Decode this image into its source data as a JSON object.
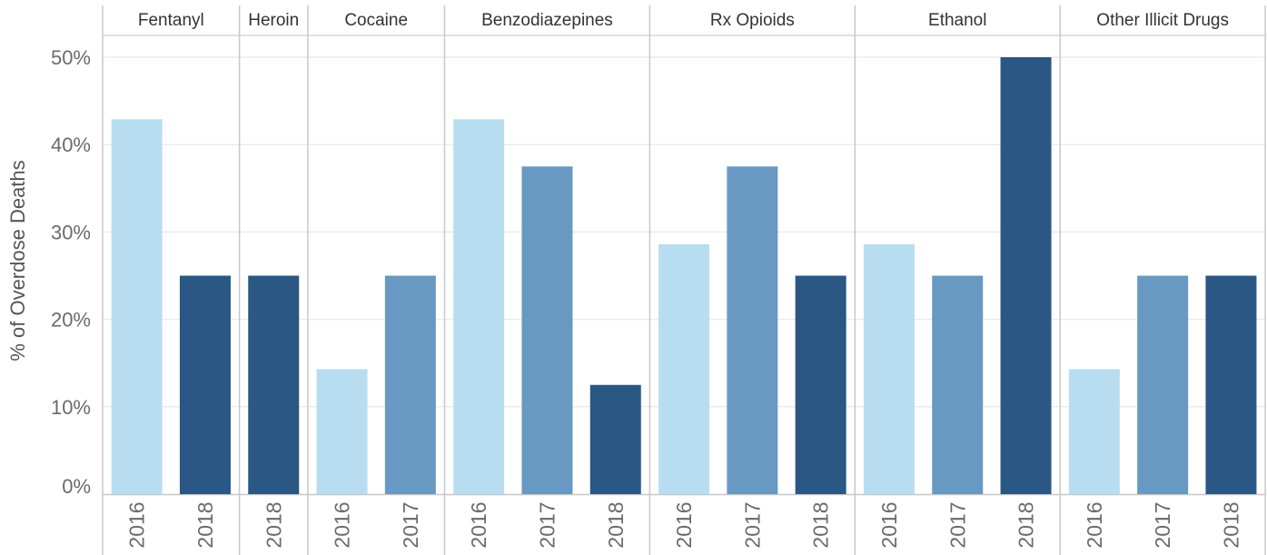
{
  "chart_data": {
    "type": "bar",
    "ylabel": "% of Overdose Deaths",
    "ylim": [
      0,
      50
    ],
    "yticks": [
      "0%",
      "10%",
      "20%",
      "30%",
      "40%",
      "50%"
    ],
    "ytick_values": [
      0,
      10,
      20,
      30,
      40,
      50
    ],
    "grid": true,
    "year_colors": {
      "2016": "#b9ddf0",
      "2017": "#6899c2",
      "2018": "#2a5783"
    },
    "panels": [
      {
        "name": "Fentanyl",
        "bars": [
          {
            "year": "2016",
            "value": 42.9
          },
          {
            "year": "2018",
            "value": 25.0
          }
        ]
      },
      {
        "name": "Heroin",
        "bars": [
          {
            "year": "2018",
            "value": 25.0
          }
        ]
      },
      {
        "name": "Cocaine",
        "bars": [
          {
            "year": "2016",
            "value": 14.3
          },
          {
            "year": "2017",
            "value": 25.0
          }
        ]
      },
      {
        "name": "Benzodiazepines",
        "bars": [
          {
            "year": "2016",
            "value": 42.9
          },
          {
            "year": "2017",
            "value": 37.5
          },
          {
            "year": "2018",
            "value": 12.5
          }
        ]
      },
      {
        "name": "Rx Opioids",
        "bars": [
          {
            "year": "2016",
            "value": 28.6
          },
          {
            "year": "2017",
            "value": 37.5
          },
          {
            "year": "2018",
            "value": 25.0
          }
        ]
      },
      {
        "name": "Ethanol",
        "bars": [
          {
            "year": "2016",
            "value": 28.6
          },
          {
            "year": "2017",
            "value": 25.0
          },
          {
            "year": "2018",
            "value": 50.0
          }
        ]
      },
      {
        "name": "Other Illicit Drugs",
        "bars": [
          {
            "year": "2016",
            "value": 14.3
          },
          {
            "year": "2017",
            "value": 25.0
          },
          {
            "year": "2018",
            "value": 25.0
          }
        ]
      }
    ]
  }
}
